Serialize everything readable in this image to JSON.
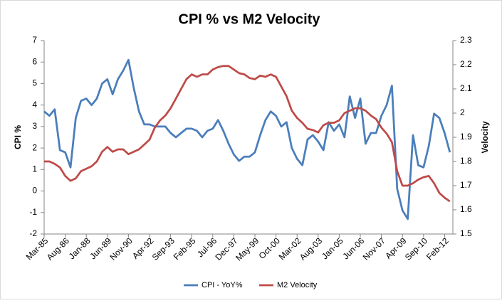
{
  "chart_data": {
    "type": "line",
    "title": "CPI % vs M2 Velocity",
    "y_label": "CPI %",
    "y2_label": "Velocity",
    "categories": [
      "Mar-85",
      null,
      null,
      null,
      "Aug-86",
      null,
      null,
      null,
      "Jan-88",
      null,
      null,
      null,
      "Jun-89",
      null,
      null,
      null,
      "Nov-90",
      null,
      null,
      null,
      "Apr-92",
      null,
      null,
      null,
      "Sep-93",
      null,
      null,
      null,
      "Feb-95",
      null,
      null,
      null,
      "Jul-96",
      null,
      null,
      null,
      "Dec-97",
      null,
      null,
      null,
      "May-99",
      null,
      null,
      null,
      "Oct-00",
      null,
      null,
      null,
      "Mar-02",
      null,
      null,
      null,
      "Aug-03",
      null,
      null,
      null,
      "Jan-05",
      null,
      null,
      null,
      "Jun-06",
      null,
      null,
      null,
      "Nov-07",
      null,
      null,
      null,
      "Apr-09",
      null,
      null,
      null,
      "Sep-10",
      null,
      null,
      null,
      "Feb-12",
      null
    ],
    "series": [
      {
        "name": "CPI - YoY%",
        "color": "#4a7ebb",
        "axis": "y",
        "values": [
          3.7,
          3.5,
          3.8,
          1.9,
          1.8,
          1.1,
          3.4,
          4.2,
          4.3,
          4.0,
          4.3,
          5.0,
          5.2,
          4.5,
          5.2,
          5.6,
          6.1,
          4.8,
          3.7,
          3.1,
          3.1,
          3.0,
          3.0,
          3.0,
          2.7,
          2.5,
          2.7,
          2.9,
          2.9,
          2.8,
          2.5,
          2.8,
          2.9,
          3.3,
          2.8,
          2.2,
          1.7,
          1.4,
          1.6,
          1.6,
          1.8,
          2.6,
          3.3,
          3.7,
          3.5,
          3.0,
          3.2,
          2.0,
          1.5,
          1.2,
          2.4,
          2.6,
          2.3,
          1.9,
          3.2,
          2.8,
          3.1,
          2.5,
          4.4,
          3.4,
          4.3,
          2.2,
          2.7,
          2.7,
          3.5,
          4.0,
          4.9,
          0.1,
          -0.9,
          -1.3,
          2.6,
          1.2,
          1.1,
          2.1,
          3.6,
          3.4,
          2.7,
          1.8
        ]
      },
      {
        "name": "M2 Velocity",
        "color": "#be4b48",
        "axis": "y2",
        "values": [
          1.8,
          1.8,
          1.79,
          1.775,
          1.74,
          1.72,
          1.73,
          1.76,
          1.77,
          1.78,
          1.8,
          1.84,
          1.86,
          1.84,
          1.85,
          1.85,
          1.83,
          1.84,
          1.85,
          1.87,
          1.89,
          1.94,
          1.97,
          1.99,
          2.02,
          2.06,
          2.1,
          2.14,
          2.16,
          2.15,
          2.16,
          2.16,
          2.18,
          2.19,
          2.195,
          2.195,
          2.18,
          2.165,
          2.16,
          2.145,
          2.14,
          2.155,
          2.15,
          2.16,
          2.15,
          2.11,
          2.07,
          2.01,
          1.98,
          1.96,
          1.935,
          1.93,
          1.92,
          1.95,
          1.96,
          1.96,
          1.97,
          2.0,
          2.01,
          2.02,
          2.02,
          2.01,
          1.99,
          1.975,
          1.94,
          1.915,
          1.88,
          1.76,
          1.7,
          1.7,
          1.71,
          1.725,
          1.735,
          1.74,
          1.71,
          1.67,
          1.65,
          1.635
        ]
      }
    ],
    "ylim": [
      -2,
      7
    ],
    "yticks": [
      -2,
      -1,
      0,
      1,
      2,
      3,
      4,
      5,
      6,
      7
    ],
    "y2lim": [
      1.5,
      2.3
    ],
    "y2ticks": [
      1.5,
      1.6,
      1.7,
      1.8,
      1.9,
      2,
      2.1,
      2.2,
      2.3
    ],
    "grid": false,
    "legend": "bottom"
  }
}
